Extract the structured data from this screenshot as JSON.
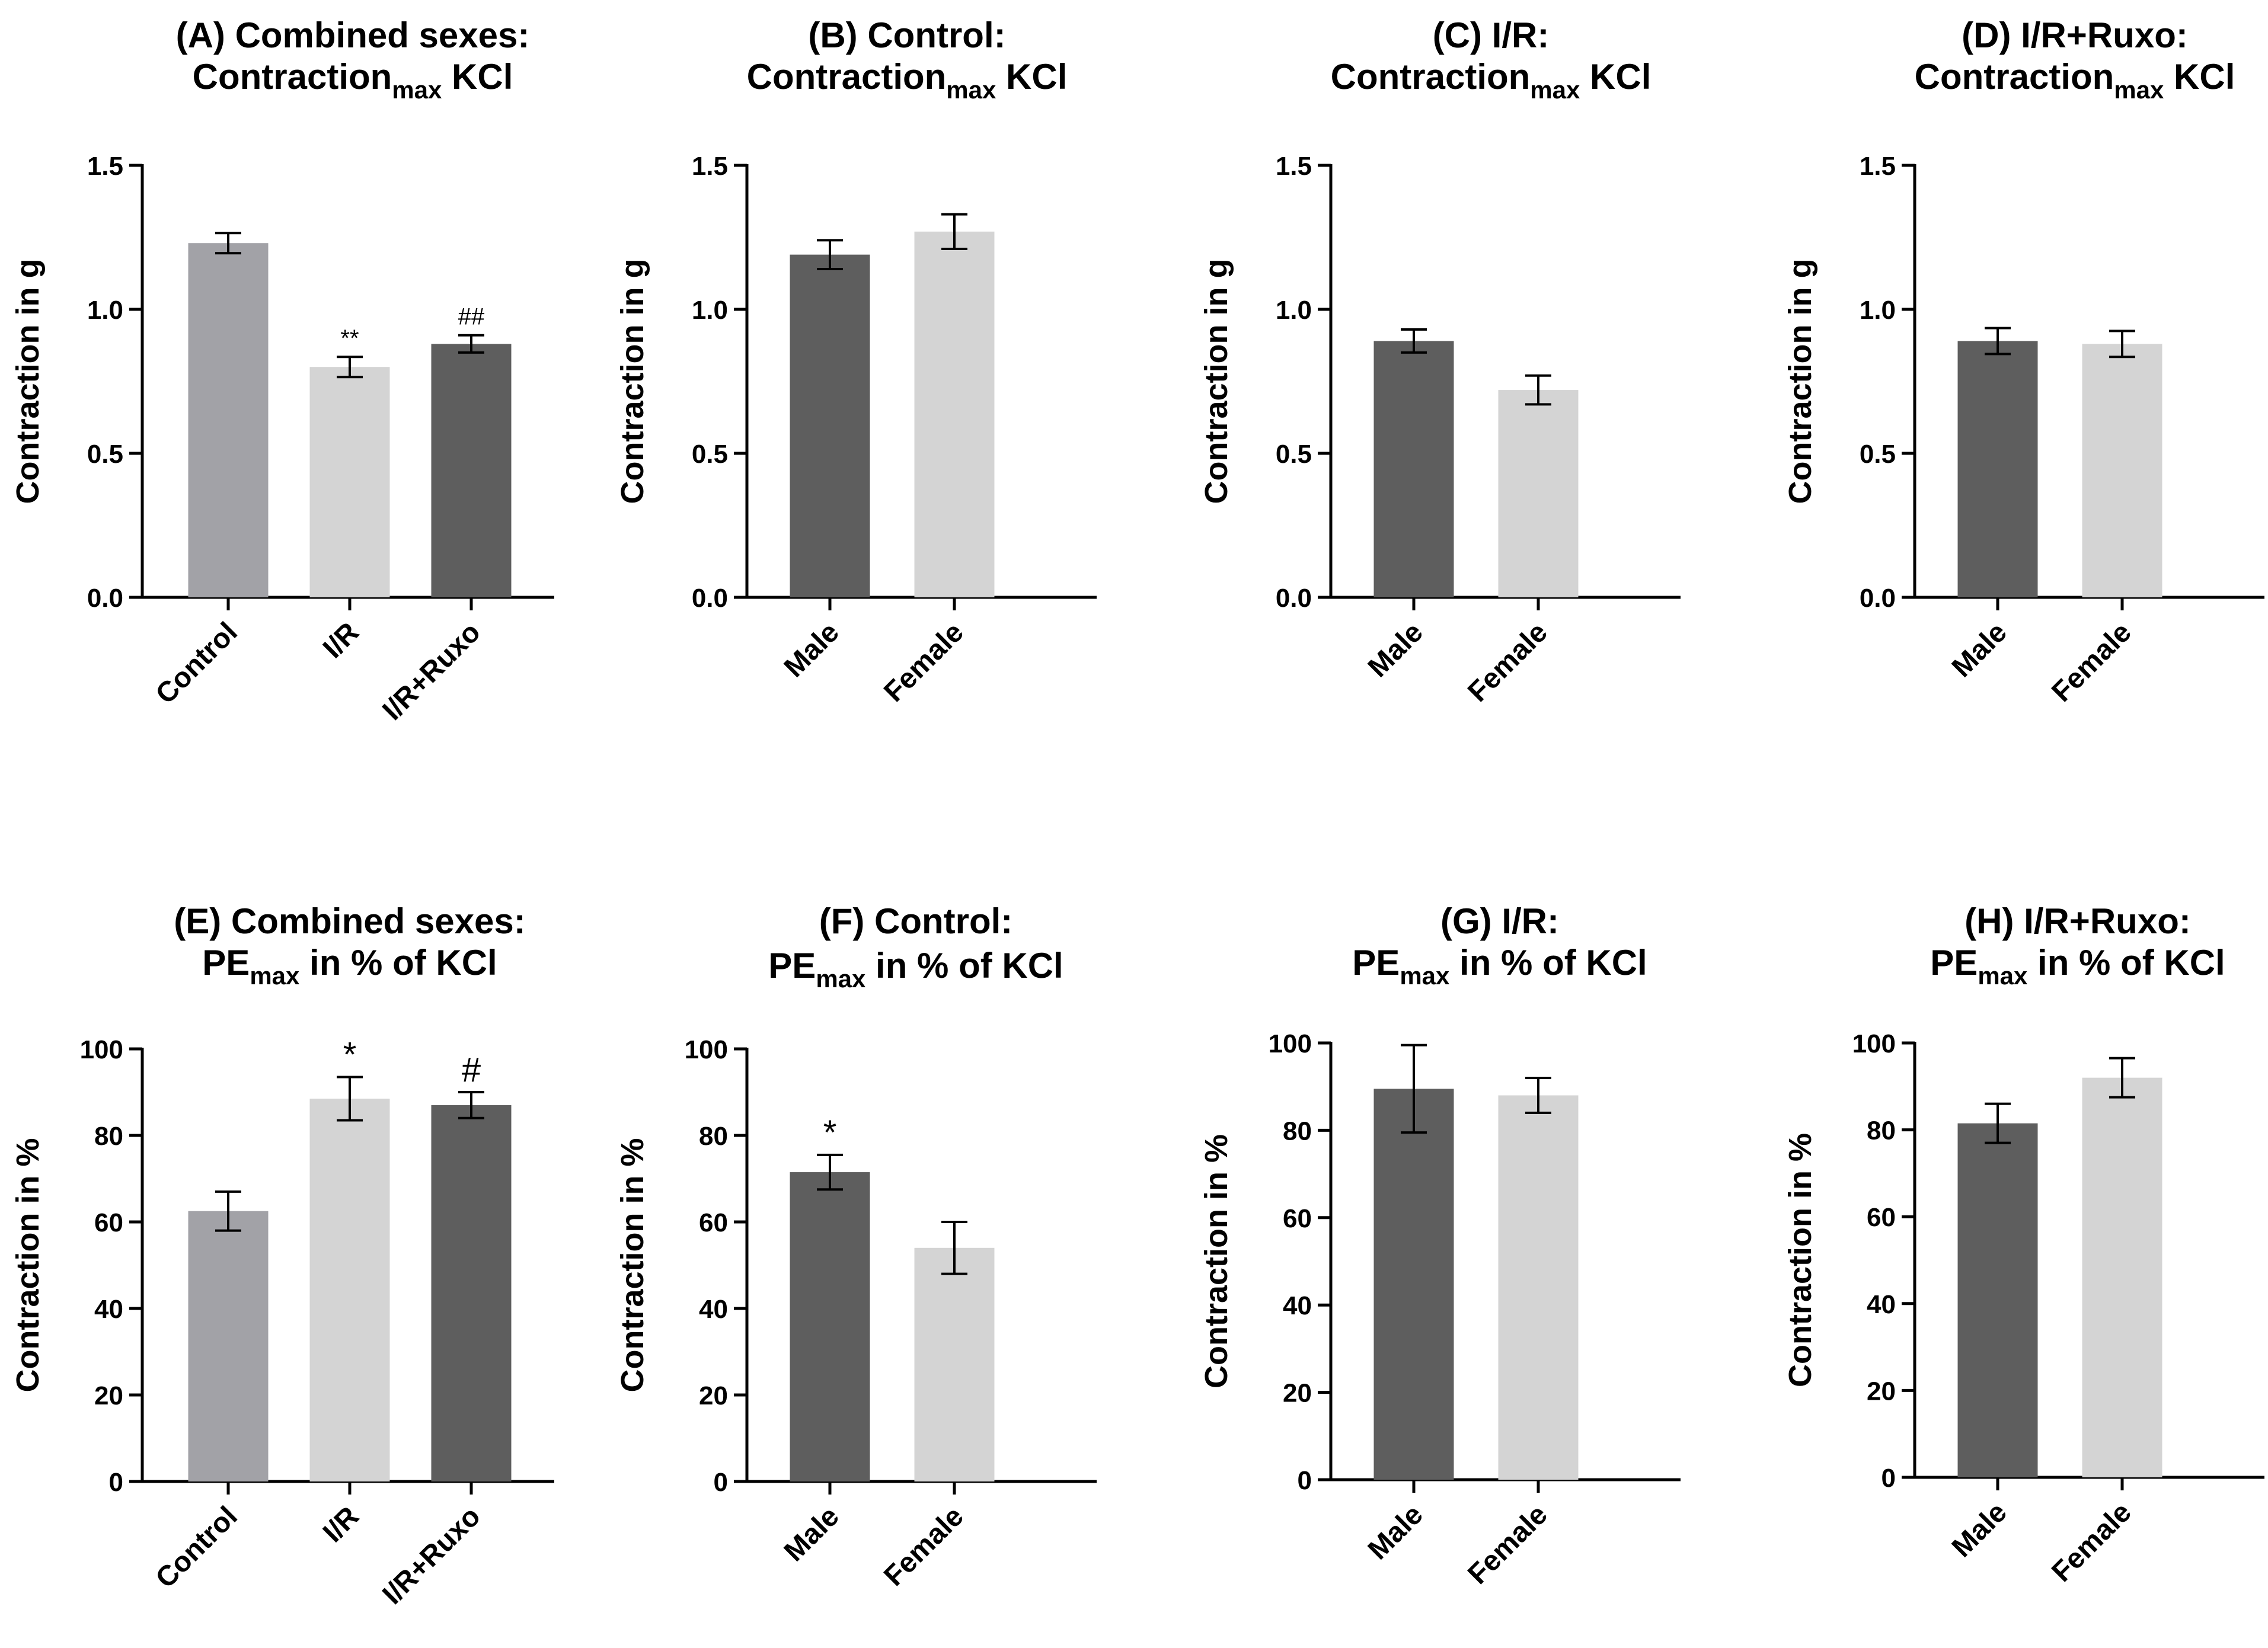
{
  "colors": {
    "control_gray": "#a2a2a7",
    "light_gray": "#d4d4d4",
    "dark_gray": "#5e5e5e",
    "axis": "#000000"
  },
  "chart_data": [
    {
      "id": "A",
      "type": "bar",
      "title_line1": "(A) Combined sexes:",
      "title_line2": {
        "main": "Contraction",
        "sub": "max",
        "rest": " KCl"
      },
      "ylabel": "Contraction in g",
      "ylim": [
        0,
        1.5
      ],
      "yticks": [
        "0.0",
        "0.5",
        "1.0",
        "1.5"
      ],
      "ytick_values": [
        0,
        0.5,
        1.0,
        1.5
      ],
      "categories": [
        "Control",
        "I/R",
        "I/R+Ruxo"
      ],
      "values": [
        1.23,
        0.8,
        0.88
      ],
      "errors": [
        0.035,
        0.035,
        0.03
      ],
      "bar_colors": [
        "#a2a2a7",
        "#d4d4d4",
        "#5e5e5e"
      ],
      "annotations": [
        "",
        "**",
        "##"
      ]
    },
    {
      "id": "B",
      "type": "bar",
      "title_line1": "(B) Control:",
      "title_line2": {
        "main": "Contraction",
        "sub": "max",
        "rest": " KCl"
      },
      "ylabel": "Contraction in g",
      "ylim": [
        0,
        1.5
      ],
      "yticks": [
        "0.0",
        "0.5",
        "1.0",
        "1.5"
      ],
      "ytick_values": [
        0,
        0.5,
        1.0,
        1.5
      ],
      "categories": [
        "Male",
        "Female"
      ],
      "values": [
        1.19,
        1.27
      ],
      "errors": [
        0.05,
        0.06
      ],
      "bar_colors": [
        "#5e5e5e",
        "#d4d4d4"
      ],
      "annotations": [
        "",
        ""
      ]
    },
    {
      "id": "C",
      "type": "bar",
      "title_line1": "(C) I/R:",
      "title_line2": {
        "main": "Contraction",
        "sub": "max",
        "rest": " KCl"
      },
      "ylabel": "Contraction in g",
      "ylim": [
        0,
        1.5
      ],
      "yticks": [
        "0.0",
        "0.5",
        "1.0",
        "1.5"
      ],
      "ytick_values": [
        0,
        0.5,
        1.0,
        1.5
      ],
      "categories": [
        "Male",
        "Female"
      ],
      "values": [
        0.89,
        0.72
      ],
      "errors": [
        0.04,
        0.05
      ],
      "bar_colors": [
        "#5e5e5e",
        "#d4d4d4"
      ],
      "annotations": [
        "",
        ""
      ]
    },
    {
      "id": "D",
      "type": "bar",
      "title_line1": "(D) I/R+Ruxo:",
      "title_line2": {
        "main": "Contraction",
        "sub": "max",
        "rest": " KCl"
      },
      "ylabel": "Contraction in g",
      "ylim": [
        0,
        1.5
      ],
      "yticks": [
        "0.0",
        "0.5",
        "1.0",
        "1.5"
      ],
      "ytick_values": [
        0,
        0.5,
        1.0,
        1.5
      ],
      "categories": [
        "Male",
        "Female"
      ],
      "values": [
        0.89,
        0.88
      ],
      "errors": [
        0.045,
        0.045
      ],
      "bar_colors": [
        "#5e5e5e",
        "#d4d4d4"
      ],
      "annotations": [
        "",
        ""
      ]
    },
    {
      "id": "E",
      "type": "bar",
      "title_line1": "(E) Combined sexes:",
      "title_line2": {
        "main": "PE",
        "sub": "max",
        "rest": " in % of KCl"
      },
      "ylabel": "Contraction in %",
      "ylim": [
        0,
        100
      ],
      "yticks": [
        "0",
        "20",
        "40",
        "60",
        "80",
        "100"
      ],
      "ytick_values": [
        0,
        20,
        40,
        60,
        80,
        100
      ],
      "categories": [
        "Control",
        "I/R",
        "I/R+Ruxo"
      ],
      "values": [
        62.5,
        88.5,
        87.0
      ],
      "errors": [
        4.5,
        5.0,
        3.0
      ],
      "bar_colors": [
        "#a2a2a7",
        "#d4d4d4",
        "#5e5e5e"
      ],
      "annotations": [
        "",
        "*",
        "#"
      ]
    },
    {
      "id": "F",
      "type": "bar",
      "title_line1": "(F) Control:",
      "title_line2": {
        "main": "PE",
        "sub": "max",
        "rest": " in % of  KCl"
      },
      "ylabel": "Contraction in %",
      "ylim": [
        0,
        100
      ],
      "yticks": [
        "0",
        "20",
        "40",
        "60",
        "80",
        "100"
      ],
      "ytick_values": [
        0,
        20,
        40,
        60,
        80,
        100
      ],
      "categories": [
        "Male",
        "Female"
      ],
      "values": [
        71.5,
        54.0
      ],
      "errors": [
        4.0,
        6.0
      ],
      "bar_colors": [
        "#5e5e5e",
        "#d4d4d4"
      ],
      "annotations": [
        "*",
        ""
      ]
    },
    {
      "id": "G",
      "type": "bar",
      "title_line1": "(G) I/R:",
      "title_line2": {
        "main": "PE",
        "sub": "max",
        "rest": " in % of KCl"
      },
      "ylabel": "Contraction in %",
      "ylim": [
        0,
        100
      ],
      "yticks": [
        "0",
        "20",
        "40",
        "60",
        "80",
        "100"
      ],
      "ytick_values": [
        0,
        20,
        40,
        60,
        80,
        100
      ],
      "categories": [
        "Male",
        "Female"
      ],
      "values": [
        89.5,
        88.0
      ],
      "errors": [
        10.0,
        4.0
      ],
      "bar_colors": [
        "#5e5e5e",
        "#d4d4d4"
      ],
      "annotations": [
        "",
        ""
      ]
    },
    {
      "id": "H",
      "type": "bar",
      "title_line1": "(H) I/R+Ruxo:",
      "title_line2": {
        "main": "PE",
        "sub": "max",
        "rest": " in % of KCl"
      },
      "ylabel": "Contraction in %",
      "ylim": [
        0,
        100
      ],
      "yticks": [
        "0",
        "20",
        "40",
        "60",
        "80",
        "100"
      ],
      "ytick_values": [
        0,
        20,
        40,
        60,
        80,
        100
      ],
      "categories": [
        "Male",
        "Female"
      ],
      "values": [
        81.5,
        92.0
      ],
      "errors": [
        4.5,
        4.5
      ],
      "bar_colors": [
        "#5e5e5e",
        "#d4d4d4"
      ],
      "annotations": [
        "",
        ""
      ]
    }
  ]
}
